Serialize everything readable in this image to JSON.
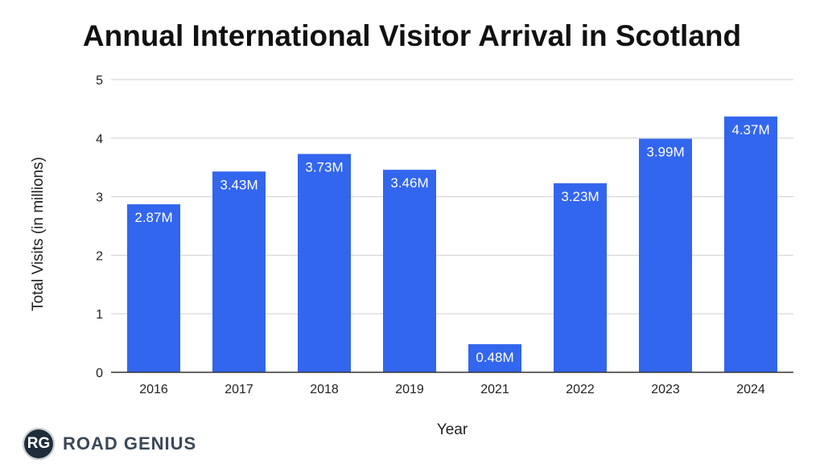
{
  "chart_data": {
    "type": "bar",
    "title": "Annual International Visitor Arrival in Scotland",
    "xlabel": "Year",
    "ylabel": "Total Visits (in millions)",
    "categories": [
      "2016",
      "2017",
      "2018",
      "2019",
      "2021",
      "2022",
      "2023",
      "2024"
    ],
    "values": [
      2.87,
      3.43,
      3.73,
      3.46,
      0.48,
      3.23,
      3.99,
      4.37
    ],
    "data_labels": [
      "2.87M",
      "3.43M",
      "3.73M",
      "3.46M",
      "0.48M",
      "3.23M",
      "3.99M",
      "4.37M"
    ],
    "ylim": [
      0,
      5
    ],
    "yticks": [
      0,
      1,
      2,
      3,
      4,
      5
    ],
    "grid": true,
    "legend": "none",
    "bar_color": "#3366ee"
  },
  "branding": {
    "logo_badge": "RG",
    "logo_text": "ROAD GENIUS"
  }
}
